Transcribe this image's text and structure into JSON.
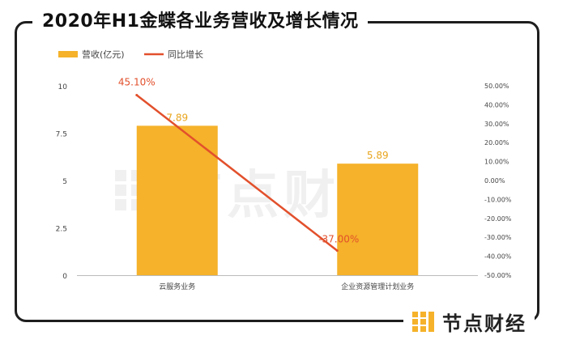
{
  "title": "2020年H1金蝶各业务营收及增长情况",
  "brand": {
    "name": "节点财经"
  },
  "watermark": {
    "text": "节点财经"
  },
  "colors": {
    "bar": "#F5B22A",
    "line": "#E2502C",
    "bar_label": "#E8A51E",
    "line_label": "#E2502C",
    "axis": "#BBBBBB",
    "text": "#444444"
  },
  "chart_data": {
    "type": "bar",
    "categories": [
      "云服务业务",
      "企业资源管理计划业务"
    ],
    "series": [
      {
        "name": "营收(亿元)",
        "type": "bar",
        "axis": "left",
        "values": [
          7.89,
          5.89
        ],
        "labels": [
          "7.89",
          "5.89"
        ]
      },
      {
        "name": "同比增长",
        "type": "line",
        "axis": "right",
        "values": [
          45.1,
          -37.0
        ],
        "labels": [
          "45.10%",
          "-37.00%"
        ]
      }
    ],
    "left_axis": {
      "ylim": [
        0,
        10
      ],
      "ticks": [
        "0",
        "2.5",
        "5",
        "7.5",
        "10"
      ]
    },
    "right_axis": {
      "ylim": [
        -50,
        50
      ],
      "ticks": [
        "-50.00%",
        "-40.00%",
        "-30.00%",
        "-20.00%",
        "-10.00%",
        "0.00%",
        "10.00%",
        "20.00%",
        "30.00%",
        "40.00%",
        "50.00%"
      ]
    },
    "legend": "top-left",
    "grid": false
  }
}
